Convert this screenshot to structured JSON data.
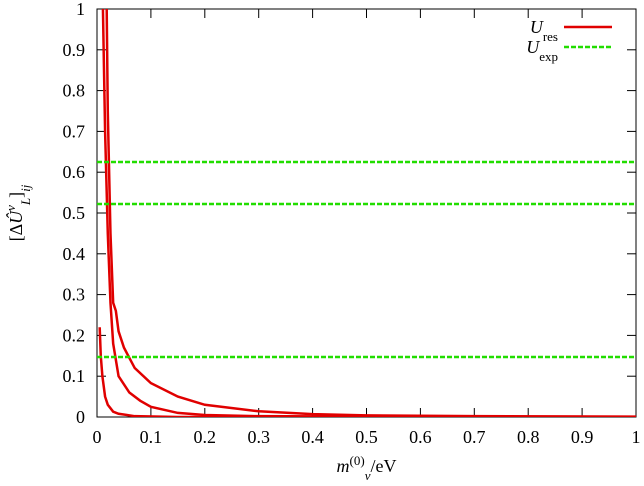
{
  "chart_data": {
    "type": "line",
    "xlabel": [
      {
        "text": "m",
        "pos": "normal",
        "italic": true
      },
      {
        "text": "(0)",
        "pos": "super",
        "italic": false
      },
      {
        "text": "ν",
        "pos": "sub",
        "italic": true
      },
      {
        "text": "/eV",
        "pos": "normal",
        "italic": false
      }
    ],
    "ylabel": [
      {
        "text": "[Δ",
        "pos": "normal",
        "italic": false
      },
      {
        "text": "Û",
        "pos": "normal",
        "italic": true
      },
      {
        "text": "ν",
        "pos": "super",
        "italic": true
      },
      {
        "text": "L",
        "pos": "sub",
        "italic": true
      },
      {
        "text": "]",
        "pos": "normal",
        "italic": false
      },
      {
        "text": "ij",
        "pos": "sub",
        "italic": true
      }
    ],
    "xlim": [
      0,
      1
    ],
    "ylim": [
      0,
      1
    ],
    "xticks": [
      0,
      0.1,
      0.2,
      0.3,
      0.4,
      0.5,
      0.6,
      0.7,
      0.8,
      0.9,
      1
    ],
    "yticks": [
      0,
      0.1,
      0.2,
      0.3,
      0.4,
      0.5,
      0.6,
      0.7,
      0.8,
      0.9,
      1
    ],
    "grid": false,
    "legend": "top-right",
    "series": [
      {
        "name": "U",
        "subscript": "res",
        "color": "#e00000",
        "dash": false,
        "x": [
          0.018,
          0.02,
          0.025,
          0.03,
          0.035,
          0.04,
          0.05,
          0.07,
          0.1,
          0.15,
          0.2,
          0.3,
          0.4,
          0.5,
          0.7,
          1.0
        ],
        "values": [
          1,
          0.75,
          0.45,
          0.28,
          0.26,
          0.21,
          0.17,
          0.12,
          0.083,
          0.05,
          0.03,
          0.014,
          0.007,
          0.004,
          0.002,
          0.001
        ]
      },
      {
        "color": "#e00000",
        "dash": false,
        "x": [
          0.011,
          0.015,
          0.02,
          0.025,
          0.03,
          0.04,
          0.06,
          0.08,
          0.1,
          0.15,
          0.2,
          0.3,
          0.5,
          1.0
        ],
        "values": [
          1,
          0.7,
          0.45,
          0.28,
          0.18,
          0.1,
          0.06,
          0.04,
          0.025,
          0.01,
          0.005,
          0.002,
          0.001,
          0
        ]
      },
      {
        "color": "#e00000",
        "dash": false,
        "x": [
          0.005,
          0.007,
          0.01,
          0.015,
          0.02,
          0.03,
          0.04,
          0.07,
          0.15,
          1.0
        ],
        "values": [
          0.22,
          0.15,
          0.1,
          0.05,
          0.03,
          0.013,
          0.008,
          0.002,
          0,
          0
        ]
      },
      {
        "name": "U",
        "subscript": "exp",
        "color": "#22dd00",
        "dash": true,
        "x": [
          0,
          1
        ],
        "values": [
          0.625,
          0.625
        ]
      },
      {
        "color": "#22dd00",
        "dash": true,
        "x": [
          0,
          1
        ],
        "values": [
          0.522,
          0.522
        ]
      },
      {
        "color": "#22dd00",
        "dash": true,
        "x": [
          0,
          1
        ],
        "values": [
          0.147,
          0.147
        ]
      }
    ]
  }
}
